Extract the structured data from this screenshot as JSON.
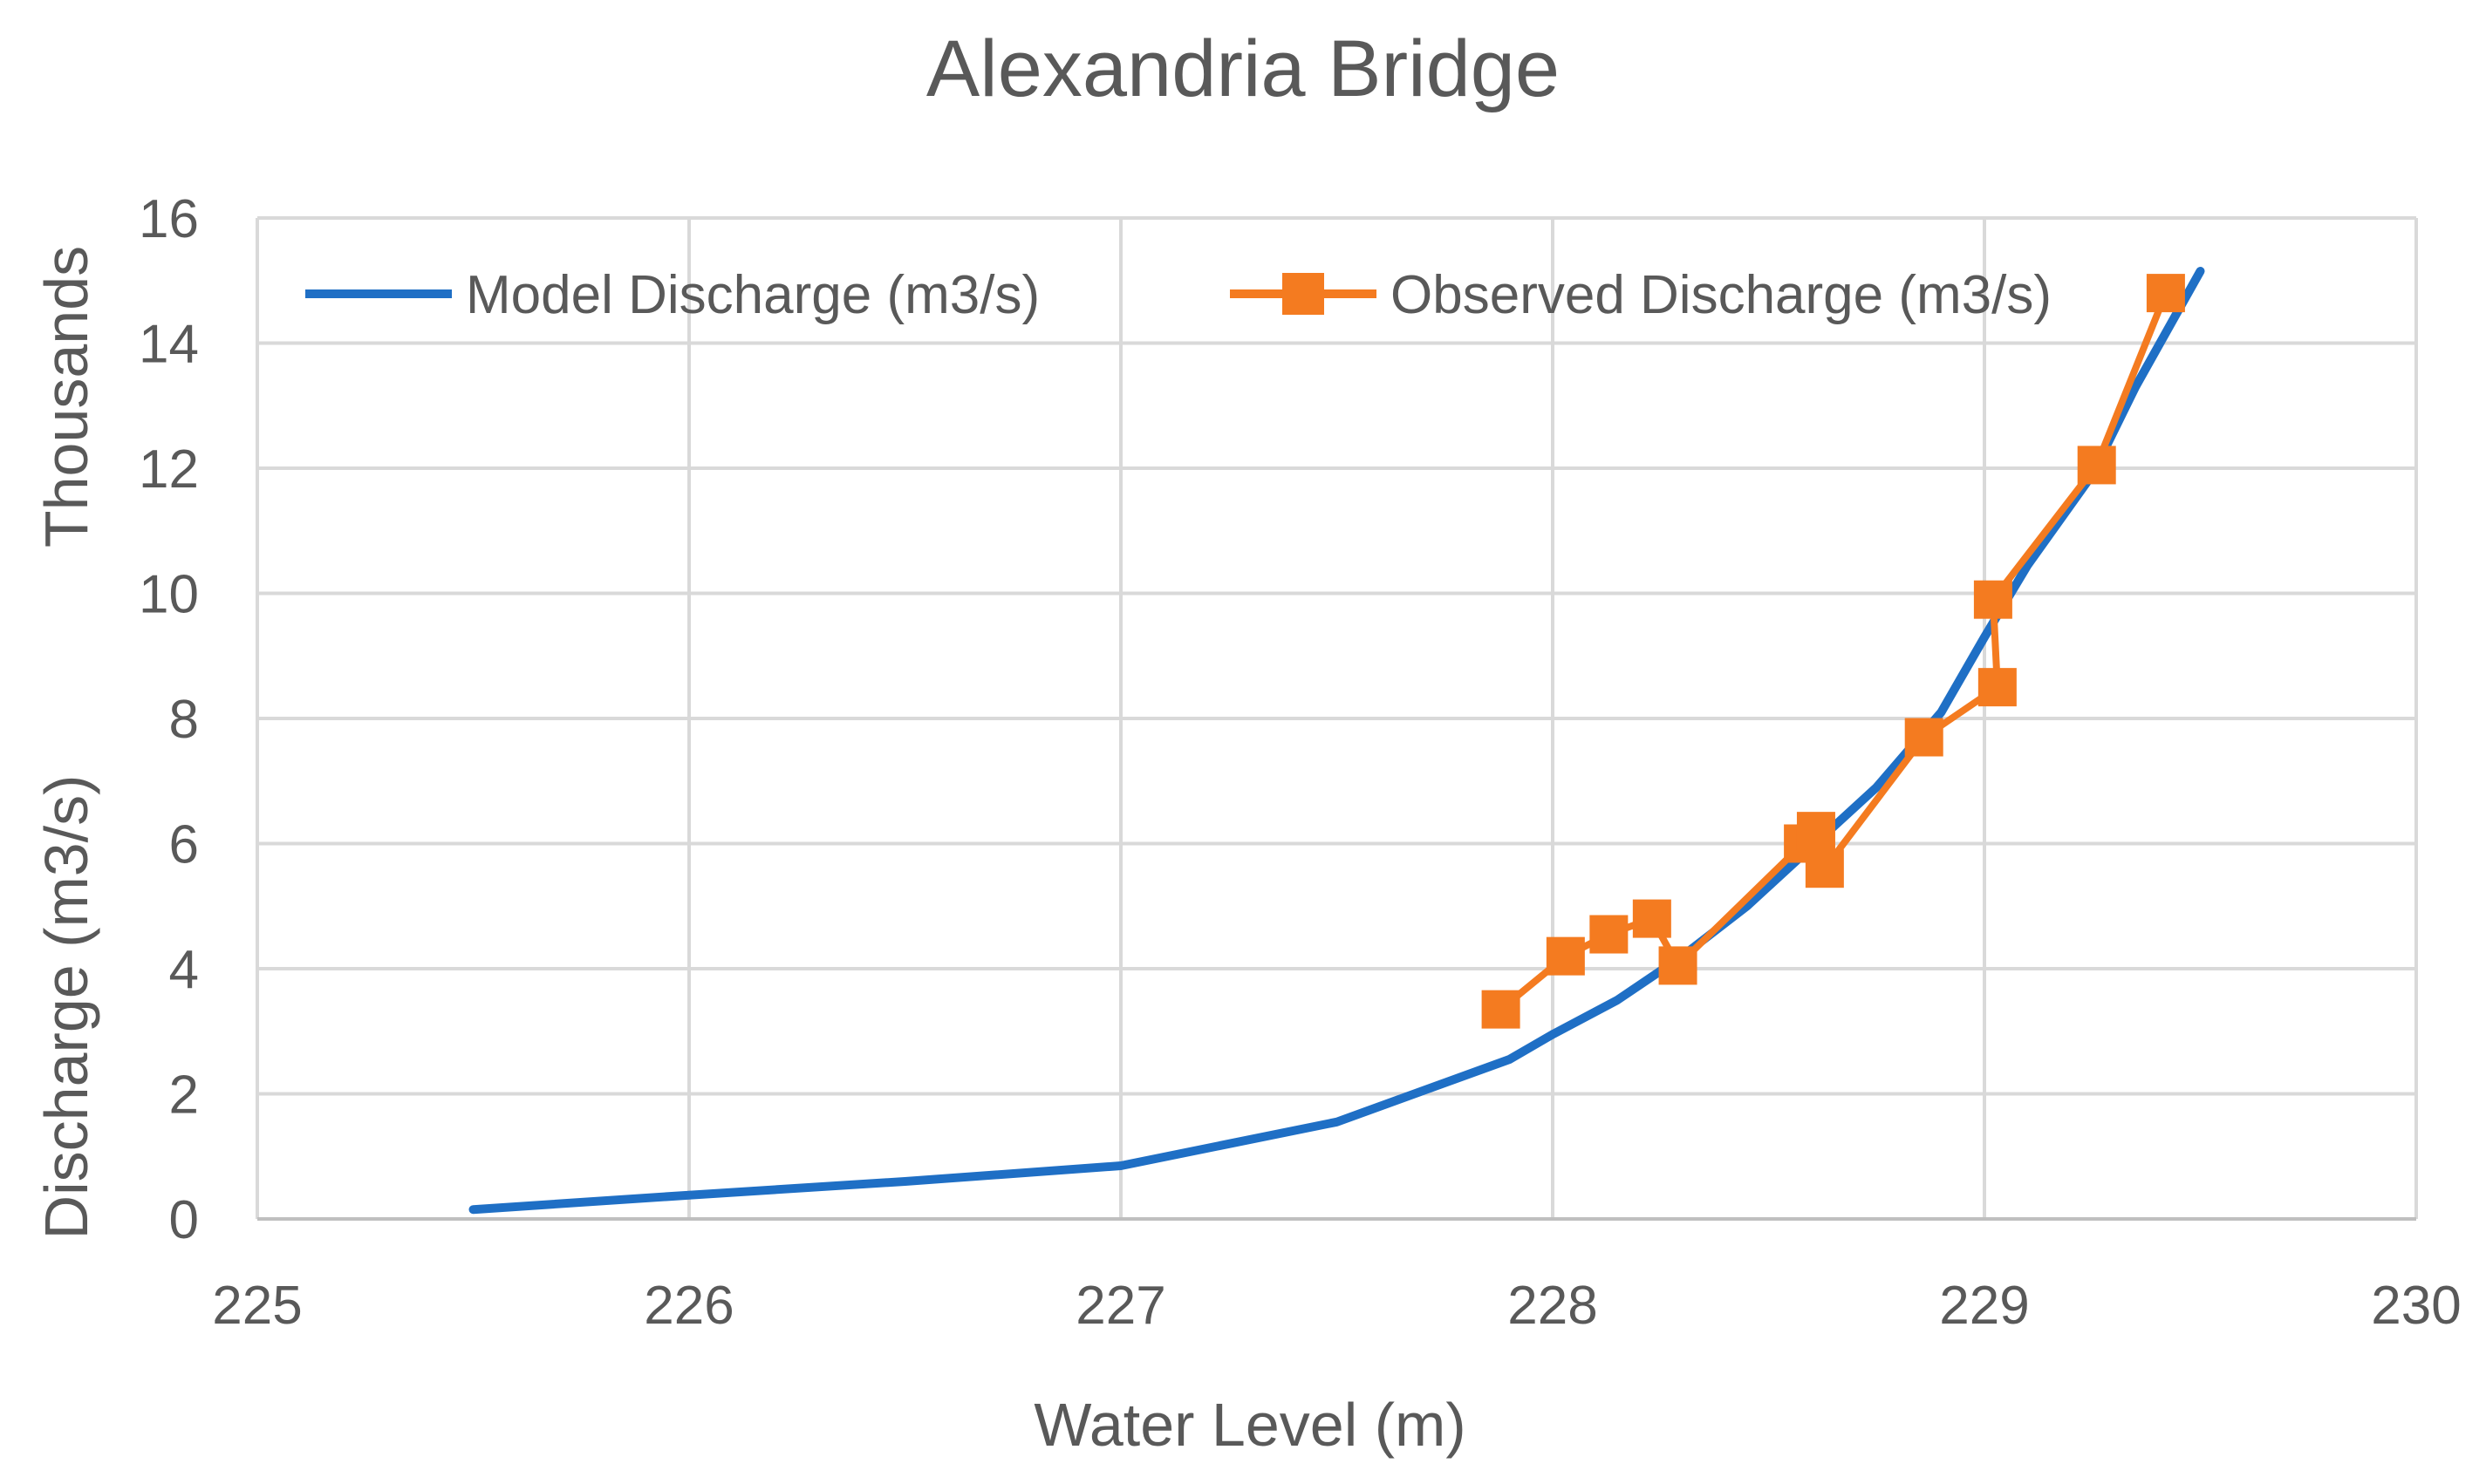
{
  "chart_data": {
    "type": "line",
    "title": "Alexandria Bridge",
    "xlabel": "Water Level (m)",
    "ylabel": "Discharge (m3/s)",
    "y_units_label": "Thousands",
    "xlim": [
      225,
      230
    ],
    "ylim": [
      0,
      16
    ],
    "x_ticks": [
      "225",
      "226",
      "227",
      "228",
      "229",
      "230"
    ],
    "y_ticks": [
      "0",
      "2",
      "4",
      "6",
      "8",
      "10",
      "12",
      "14",
      "16"
    ],
    "grid": true,
    "legend_position": "top",
    "series": [
      {
        "name": "Model Discharge (m3/s)",
        "color": "#1f6fc5",
        "marker": "none",
        "points": [
          [
            225.5,
            0.15
          ],
          [
            226.0,
            0.38
          ],
          [
            226.5,
            0.6
          ],
          [
            227.0,
            0.85
          ],
          [
            227.5,
            1.55
          ],
          [
            227.9,
            2.55
          ],
          [
            228.0,
            2.95
          ],
          [
            228.15,
            3.5
          ],
          [
            228.3,
            4.2
          ],
          [
            228.45,
            5.0
          ],
          [
            228.6,
            5.95
          ],
          [
            228.75,
            6.9
          ],
          [
            228.9,
            8.1
          ],
          [
            229.0,
            9.3
          ],
          [
            229.1,
            10.45
          ],
          [
            229.25,
            11.9
          ],
          [
            229.35,
            13.3
          ],
          [
            229.5,
            15.15
          ]
        ]
      },
      {
        "name": "Observed Discharge (m3/s)",
        "color": "#f47b20",
        "marker": "square",
        "points": [
          [
            227.88,
            3.35
          ],
          [
            228.03,
            4.2
          ],
          [
            228.13,
            4.55
          ],
          [
            228.23,
            4.8
          ],
          [
            228.29,
            4.05
          ],
          [
            228.58,
            6.0
          ],
          [
            228.61,
            6.2
          ],
          [
            228.63,
            5.6
          ],
          [
            228.86,
            7.7
          ],
          [
            229.03,
            8.5
          ],
          [
            229.02,
            9.9
          ],
          [
            229.26,
            12.05
          ],
          [
            229.42,
            14.8
          ]
        ]
      }
    ]
  }
}
